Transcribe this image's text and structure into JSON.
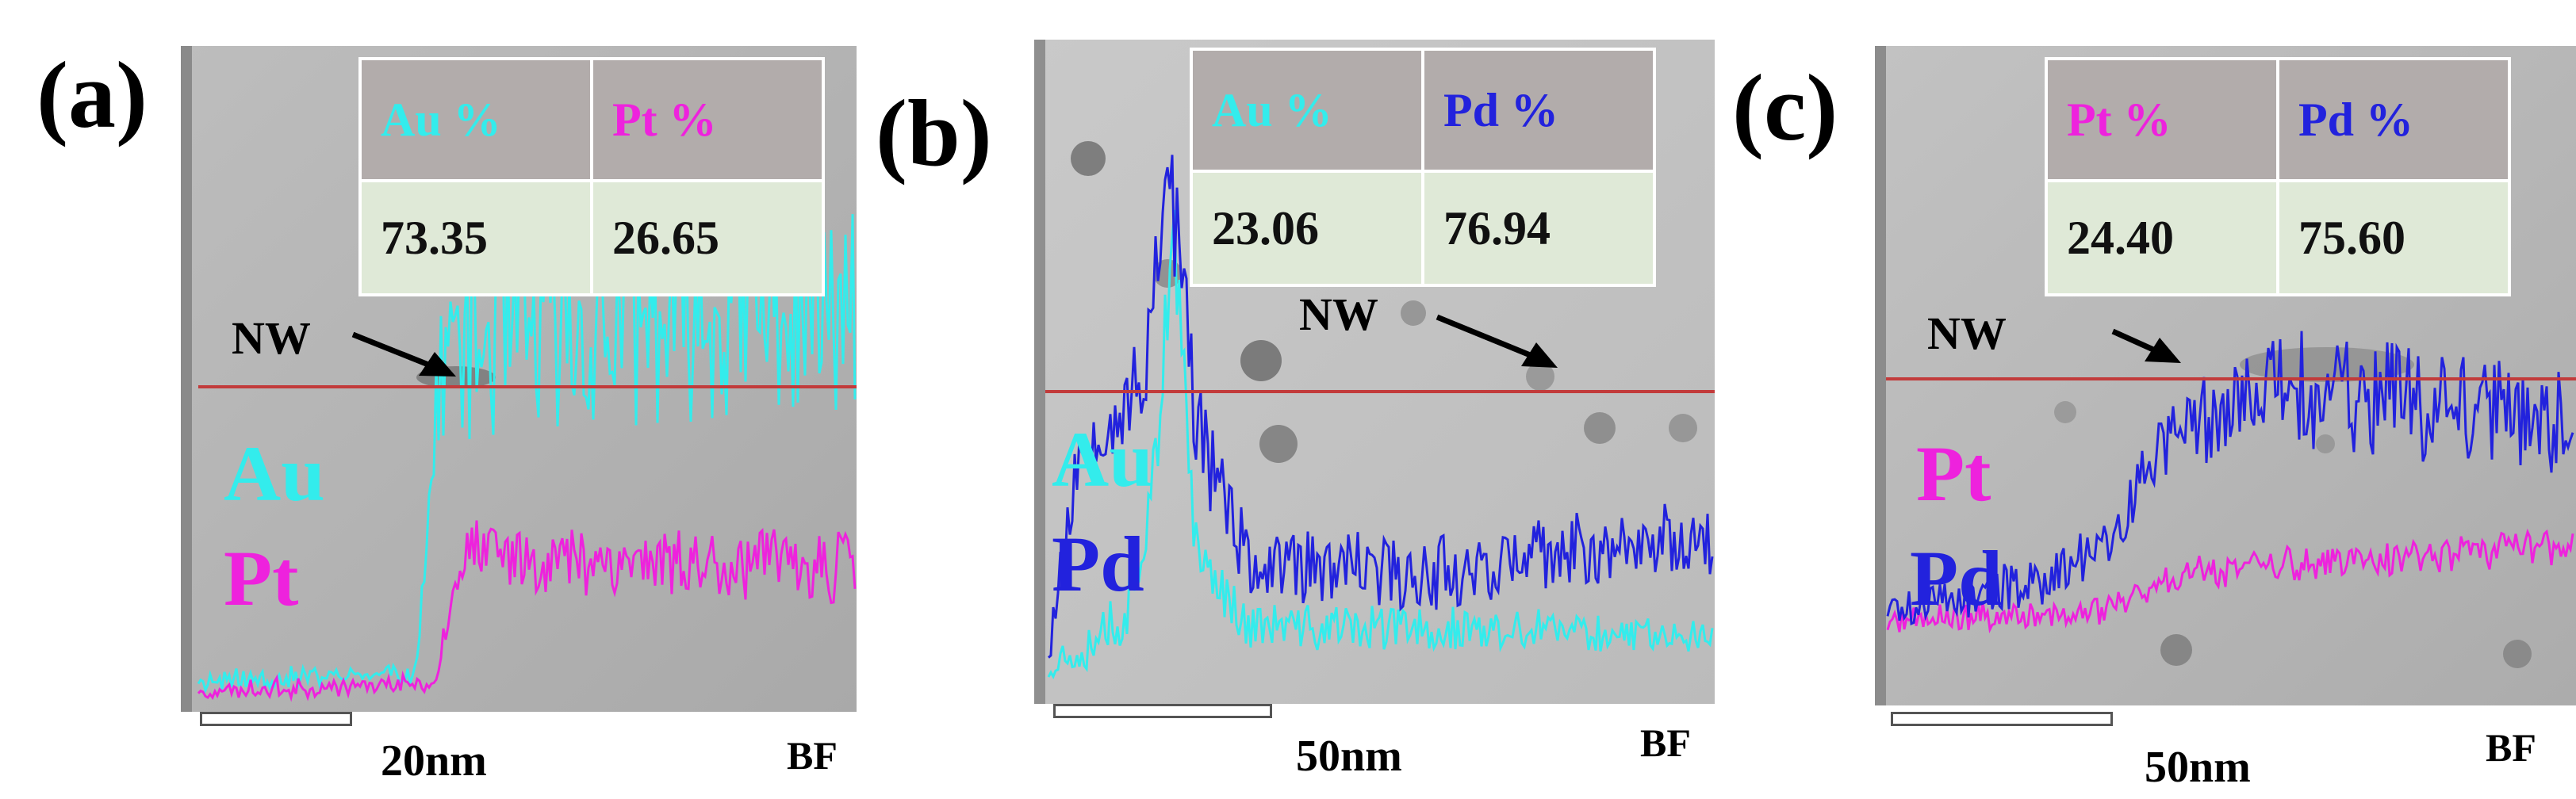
{
  "colors": {
    "Au": "#33ecec",
    "Pt": "#ee22dd",
    "Pd": "#2222dd",
    "line": "#c23b3b"
  },
  "panels": [
    {
      "label": "(a)",
      "elements": [
        {
          "symbol": "Au",
          "color": "#33ecec"
        },
        {
          "symbol": "Pt",
          "color": "#ee22dd"
        }
      ],
      "table": {
        "headers": [
          "Au %",
          "Pt %"
        ],
        "values": [
          "73.35",
          "26.65"
        ]
      },
      "nw_label": "NW",
      "scale_label": "20nm",
      "bf_label": "BF"
    },
    {
      "label": "(b)",
      "elements": [
        {
          "symbol": "Au",
          "color": "#33ecec"
        },
        {
          "symbol": "Pd",
          "color": "#2222dd"
        }
      ],
      "table": {
        "headers": [
          "Au %",
          "Pd %"
        ],
        "values": [
          "23.06",
          "76.94"
        ]
      },
      "nw_label": "NW",
      "scale_label": "50nm",
      "bf_label": "BF"
    },
    {
      "label": "(c)",
      "elements": [
        {
          "symbol": "Pt",
          "color": "#ee22dd"
        },
        {
          "symbol": "Pd",
          "color": "#2222dd"
        }
      ],
      "table": {
        "headers": [
          "Pt %",
          "Pd %"
        ],
        "values": [
          "24.40",
          "75.60"
        ]
      },
      "nw_label": "NW",
      "scale_label": "50nm",
      "bf_label": "BF"
    }
  ]
}
